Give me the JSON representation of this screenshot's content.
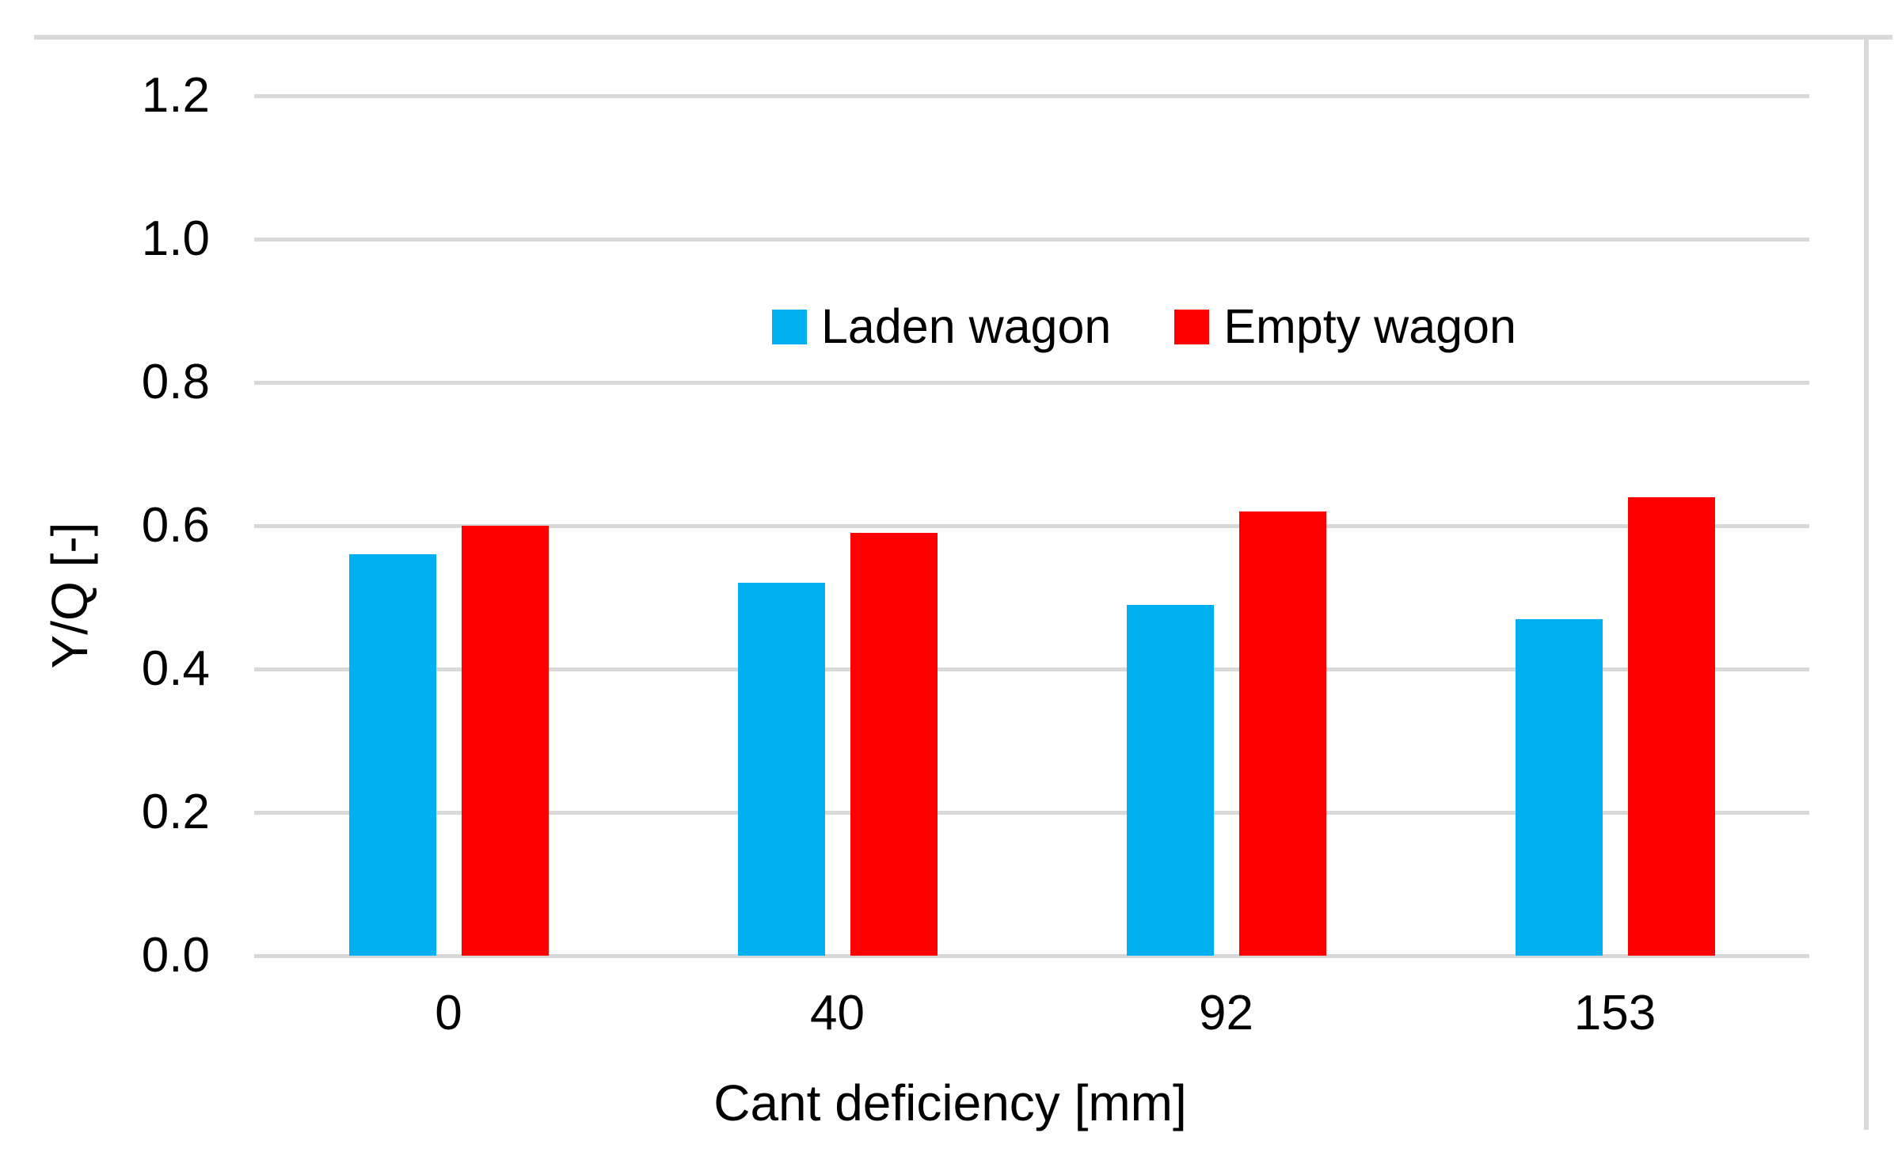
{
  "chart_data": {
    "type": "bar",
    "title": "",
    "xlabel": "Cant deficiency [mm]",
    "ylabel": "Y/Q [-]",
    "categories": [
      "0",
      "40",
      "92",
      "153"
    ],
    "series": [
      {
        "name": "Laden wagon",
        "color": "#00B0F0",
        "values": [
          0.56,
          0.52,
          0.49,
          0.47
        ]
      },
      {
        "name": "Empty wagon",
        "color": "#FF0000",
        "values": [
          0.6,
          0.59,
          0.62,
          0.64
        ]
      }
    ],
    "ylim": [
      0.0,
      1.2
    ],
    "ytick_step": 0.2,
    "ytick_labels": [
      "1.2",
      "1.0",
      "0.8",
      "0.6",
      "0.4",
      "0.2",
      "0.0"
    ],
    "grid": true,
    "gridline_color": "#D9D9D9",
    "border_color": "#D9D9D9",
    "axis_text_color": "#000000",
    "legend_position": "inside-top-center"
  }
}
